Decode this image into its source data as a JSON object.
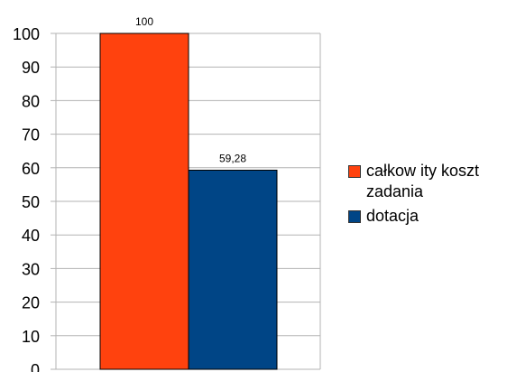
{
  "chart_data": {
    "type": "bar",
    "categories": [
      ""
    ],
    "series": [
      {
        "name": "całkow ity koszt zadania",
        "values": [
          100
        ],
        "color": "#FF420E",
        "data_label": "100"
      },
      {
        "name": "dotacja",
        "values": [
          59.28
        ],
        "color": "#004586",
        "data_label": "59,28"
      }
    ],
    "ylim": [
      0,
      100
    ],
    "yticks": [
      0,
      10,
      20,
      30,
      40,
      50,
      60,
      70,
      80,
      90,
      100
    ],
    "grid": true,
    "legend_position": "right"
  }
}
